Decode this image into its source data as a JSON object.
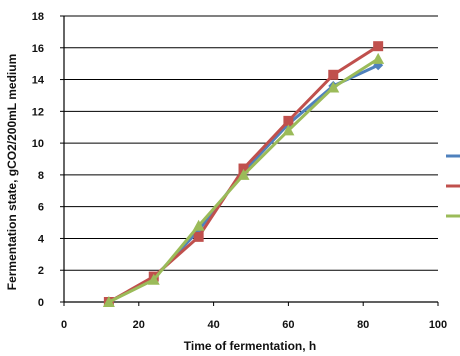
{
  "chart_data": {
    "type": "line",
    "xlabel": "Time of fermentation, h",
    "ylabel": "Fermentation state, gCO2/200mL medium",
    "xlim": [
      0,
      100
    ],
    "ylim": [
      0,
      18
    ],
    "xticks": [
      0,
      20,
      40,
      60,
      80,
      100
    ],
    "yticks": [
      0,
      2,
      4,
      6,
      8,
      10,
      12,
      14,
      16,
      18
    ],
    "grid": "horizontal",
    "legend": "right",
    "series": [
      {
        "color": "#4f81bd",
        "marker": "diamond",
        "x": [
          12,
          24,
          36,
          48,
          60,
          72,
          84
        ],
        "y": [
          0.0,
          1.5,
          4.5,
          8.2,
          11.2,
          13.6,
          14.9
        ]
      },
      {
        "color": "#c0504d",
        "marker": "square",
        "x": [
          12,
          24,
          36,
          48,
          60,
          72,
          84
        ],
        "y": [
          0.0,
          1.6,
          4.1,
          8.4,
          11.4,
          14.3,
          16.1
        ]
      },
      {
        "color": "#9bbb59",
        "marker": "triangle",
        "x": [
          12,
          24,
          36,
          48,
          60,
          72,
          84
        ],
        "y": [
          0.0,
          1.4,
          4.8,
          8.0,
          10.8,
          13.5,
          15.3
        ]
      }
    ]
  }
}
